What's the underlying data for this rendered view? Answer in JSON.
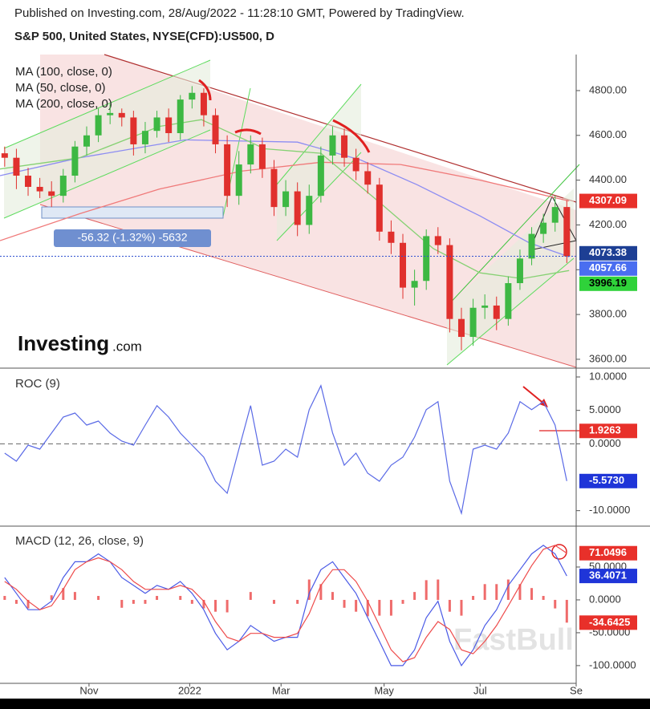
{
  "header": {
    "published": "Published on Investing.com, 28/Aug/2022 - 11:28:10 GMT, Powered by TradingView.",
    "symbol": "S&P 500, United States, NYSE(CFD):US500, D"
  },
  "chart_data": [
    {
      "type": "candlestick",
      "x": [
        2,
        7,
        12,
        17,
        22,
        27,
        32,
        37,
        42,
        47,
        52,
        57,
        62,
        67,
        72,
        77,
        82,
        87,
        92,
        97,
        102,
        107,
        112,
        117,
        122,
        127,
        132,
        137,
        142,
        147,
        152,
        157,
        162,
        167,
        172,
        177,
        182,
        187,
        192,
        197,
        202,
        207,
        212,
        217,
        222,
        227,
        232,
        237,
        242
      ],
      "open": [
        4520,
        4500,
        4420,
        4370,
        4350,
        4330,
        4420,
        4550,
        4600,
        4690,
        4700,
        4680,
        4560,
        4620,
        4680,
        4610,
        4760,
        4790,
        4690,
        4560,
        4330,
        4470,
        4560,
        4450,
        4280,
        4350,
        4200,
        4330,
        4510,
        4600,
        4500,
        4440,
        4380,
        4170,
        4120,
        3920,
        3950,
        4150,
        4110,
        3780,
        3700,
        3830,
        3840,
        3780,
        3940,
        4050,
        4160,
        4210,
        4280
      ],
      "high": [
        4550,
        4540,
        4455,
        4410,
        4395,
        4450,
        4575,
        4640,
        4720,
        4740,
        4720,
        4710,
        4660,
        4710,
        4720,
        4780,
        4820,
        4810,
        4720,
        4600,
        4530,
        4600,
        4590,
        4490,
        4400,
        4390,
        4380,
        4550,
        4640,
        4630,
        4540,
        4480,
        4410,
        4220,
        4160,
        4000,
        4180,
        4190,
        4140,
        3830,
        3870,
        3890,
        3880,
        3970,
        4090,
        4190,
        4250,
        4330,
        4310
      ],
      "low": [
        4460,
        4360,
        4330,
        4320,
        4280,
        4300,
        4390,
        4510,
        4570,
        4650,
        4640,
        4510,
        4520,
        4590,
        4570,
        4580,
        4720,
        4640,
        4520,
        4280,
        4290,
        4430,
        4410,
        4240,
        4240,
        4150,
        4160,
        4300,
        4470,
        4460,
        4400,
        4340,
        4130,
        4070,
        3870,
        3840,
        3910,
        4070,
        3720,
        3640,
        3660,
        3780,
        3730,
        3750,
        3910,
        4020,
        4120,
        4170,
        4030
      ],
      "close": [
        4500,
        4420,
        4370,
        4350,
        4330,
        4420,
        4550,
        4600,
        4690,
        4700,
        4680,
        4560,
        4620,
        4680,
        4610,
        4760,
        4790,
        4690,
        4560,
        4330,
        4470,
        4560,
        4450,
        4280,
        4350,
        4200,
        4330,
        4510,
        4600,
        4500,
        4440,
        4380,
        4170,
        4120,
        3920,
        3950,
        4150,
        4110,
        3780,
        3700,
        3830,
        3840,
        3780,
        3940,
        4050,
        4160,
        4210,
        4280,
        4060
      ],
      "up_color": "#3db843",
      "down_color": "#e0302d",
      "series": [
        {
          "name": "MA (100, close, 0)",
          "color": "#8c8cf2",
          "x": [
            0,
            34,
            79,
            127,
            154,
            178,
            205,
            226,
            243
          ],
          "values": [
            4420,
            4500,
            4580,
            4570,
            4490,
            4380,
            4240,
            4120,
            4057.66
          ]
        },
        {
          "name": "MA (50, close, 0)",
          "color": "#86d173",
          "x": [
            0,
            34,
            68,
            86,
            113,
            137,
            161,
            185,
            205,
            223,
            243
          ],
          "values": [
            4450,
            4500,
            4640,
            4670,
            4540,
            4520,
            4310,
            4094,
            3986,
            3960,
            3996.19
          ]
        },
        {
          "name": "MA (200, close, 0)",
          "color": "#f07a7a",
          "x": [
            0,
            34,
            68,
            103,
            137,
            171,
            205,
            243
          ],
          "values": [
            4130,
            4250,
            4360,
            4440,
            4480,
            4470,
            4400,
            4307.09
          ]
        }
      ],
      "xlim": [
        0,
        246
      ],
      "ylim": [
        3564,
        4961
      ],
      "yticks": [
        {
          "value": 3600,
          "label": "3600.00"
        },
        {
          "value": 3800,
          "label": "3800.00"
        },
        {
          "value": 4000,
          "label": "4000.00"
        },
        {
          "value": 4200,
          "label": "4200.00"
        },
        {
          "value": 4400,
          "label": "4400.00"
        },
        {
          "value": 4600,
          "label": "4600.00"
        },
        {
          "value": 4800,
          "label": "4800.00"
        }
      ],
      "price_labels": [
        {
          "value": 4307.09,
          "color": "#e8302a",
          "text_color": "#ffffff"
        },
        {
          "value": 4073.38,
          "color": "#1d3f94",
          "text_color": "#ffffff"
        },
        {
          "value": 4057.66,
          "color": "#4a6ef0",
          "text_color": "#ffffff"
        },
        {
          "value": 3996.19,
          "color": "#2fd23a",
          "text_color": "#000000"
        }
      ],
      "last_price_line": true,
      "annotation": "-56.32 (-1.32%) -5632",
      "logo": "Investing",
      "logo_suffix": ".com",
      "watermark": "FastBull"
    },
    {
      "type": "line",
      "title": "ROC (9)",
      "x": [
        2,
        7,
        12,
        17,
        22,
        27,
        32,
        37,
        42,
        47,
        52,
        57,
        62,
        67,
        72,
        77,
        82,
        87,
        92,
        97,
        102,
        107,
        112,
        117,
        122,
        127,
        132,
        137,
        142,
        147,
        152,
        157,
        162,
        167,
        172,
        177,
        182,
        187,
        192,
        197,
        202,
        207,
        212,
        217,
        222,
        227,
        232,
        237,
        242
      ],
      "series": [
        {
          "color": "#5a6ae6",
          "values": [
            -1.4,
            -2.6,
            -0.2,
            -0.8,
            1.6,
            4.0,
            4.6,
            2.8,
            3.4,
            1.6,
            0.4,
            -0.2,
            2.8,
            5.7,
            4.0,
            1.6,
            -0.2,
            -2.0,
            -5.6,
            -7.4,
            -0.8,
            5.7,
            -3.2,
            -2.6,
            -0.8,
            -2.0,
            5.1,
            8.7,
            1.6,
            -3.2,
            -1.4,
            -4.4,
            -5.6,
            -3.2,
            -2.0,
            1.0,
            5.1,
            6.3,
            -5.6,
            -10.4,
            -0.8,
            -0.2,
            -0.8,
            1.6,
            6.3,
            5.1,
            6.3,
            2.8,
            -5.573
          ]
        }
      ],
      "xlim": [
        0,
        246
      ],
      "ylim": [
        -12.2,
        11.2
      ],
      "yticks": [
        {
          "value": -10,
          "label": "-10.0000"
        },
        {
          "value": 0,
          "label": "0.0000"
        },
        {
          "value": 5,
          "label": "5.0000"
        },
        {
          "value": 10,
          "label": "10.0000"
        }
      ],
      "zero_line": true,
      "price_labels": [
        {
          "value": 1.9263,
          "color": "#e8302a",
          "text_color": "#ffffff"
        },
        {
          "value": -5.573,
          "label": "-5.5730",
          "color": "#1f35d8",
          "text_color": "#ffffff"
        }
      ]
    },
    {
      "type": "macd",
      "title": "MACD (12, 26, close, 9)",
      "x": [
        2,
        7,
        12,
        17,
        22,
        27,
        32,
        37,
        42,
        47,
        52,
        57,
        62,
        67,
        72,
        77,
        82,
        87,
        92,
        97,
        102,
        107,
        112,
        117,
        122,
        127,
        132,
        137,
        142,
        147,
        152,
        157,
        162,
        167,
        172,
        177,
        182,
        187,
        192,
        197,
        202,
        207,
        212,
        217,
        222,
        227,
        232,
        237,
        242
      ],
      "series": [
        {
          "color": "#4a5ae6",
          "values": [
            34,
            10,
            -15,
            -15,
            -2,
            34,
            58,
            58,
            70,
            58,
            34,
            22,
            10,
            22,
            16,
            28,
            10,
            -15,
            -51,
            -76,
            -63,
            -39,
            -51,
            -63,
            -57,
            -57,
            10,
            46,
            58,
            34,
            10,
            -27,
            -63,
            -100,
            -100,
            -76,
            -27,
            -2,
            -63,
            -100,
            -76,
            -39,
            -15,
            22,
            46,
            70,
            83,
            70,
            36.4071
          ]
        },
        {
          "color": "#ee4b4b",
          "values": [
            28,
            16,
            -2,
            -15,
            -9,
            16,
            46,
            58,
            64,
            58,
            46,
            28,
            16,
            16,
            16,
            22,
            16,
            -2,
            -33,
            -57,
            -63,
            -51,
            -51,
            -57,
            -57,
            -51,
            -21,
            22,
            46,
            46,
            28,
            -2,
            -39,
            -76,
            -94,
            -88,
            -57,
            -33,
            -45,
            -76,
            -82,
            -63,
            -39,
            -9,
            22,
            52,
            77,
            83,
            71.0496
          ]
        }
      ],
      "histogram": {
        "color": "#ef6b6b",
        "values": [
          6,
          -6,
          -13,
          0,
          7,
          18,
          12,
          0,
          6,
          0,
          -12,
          -6,
          -6,
          6,
          0,
          6,
          -6,
          -13,
          -18,
          -19,
          0,
          12,
          0,
          -6,
          0,
          -6,
          31,
          24,
          12,
          -12,
          -18,
          -25,
          -24,
          -24,
          -6,
          12,
          30,
          31,
          -18,
          -24,
          6,
          24,
          24,
          31,
          24,
          18,
          6,
          -13,
          -34.6425
        ]
      },
      "xlim": [
        0,
        246
      ],
      "ylim": [
        -127,
        111
      ],
      "yticks": [
        {
          "value": -100,
          "label": "-100.0000"
        },
        {
          "value": -50,
          "label": "-50.0000"
        },
        {
          "value": 0,
          "label": "0.0000"
        },
        {
          "value": 50,
          "label": "50.0000"
        }
      ],
      "xticks": [
        {
          "value": 38,
          "label": "Nov"
        },
        {
          "value": 81,
          "label": "2022"
        },
        {
          "value": 120,
          "label": "Mar"
        },
        {
          "value": 164,
          "label": "May"
        },
        {
          "value": 205,
          "label": "Jul"
        },
        {
          "value": 246,
          "label": "Se"
        }
      ],
      "price_labels": [
        {
          "value": 71.0496,
          "color": "#e8302a",
          "text_color": "#ffffff"
        },
        {
          "value": 36.4071,
          "color": "#1f35d8",
          "text_color": "#ffffff"
        },
        {
          "value": -34.6425,
          "color": "#e8302a",
          "text_color": "#ffffff"
        }
      ]
    }
  ]
}
